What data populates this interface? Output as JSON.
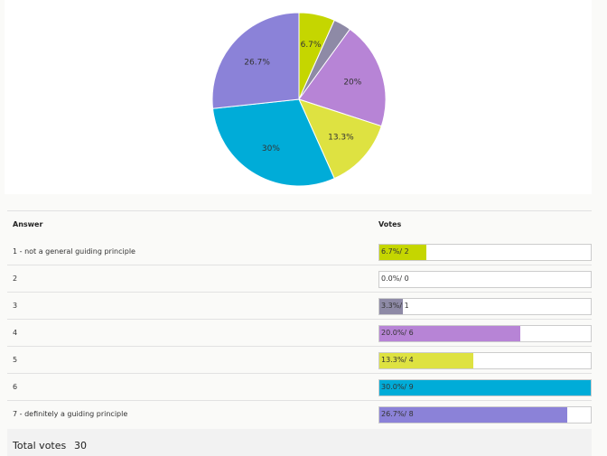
{
  "chart_data": {
    "type": "pie",
    "slices": [
      {
        "label": "1 - not a general guiding principle",
        "percent": 6.7,
        "votes": 2,
        "color": "#c5d600",
        "data_label": "6.7%"
      },
      {
        "label": "2",
        "percent": 0.0,
        "votes": 0,
        "color": "#cccccc",
        "data_label": ""
      },
      {
        "label": "3",
        "percent": 3.3,
        "votes": 1,
        "color": "#8e8aa6",
        "data_label": ""
      },
      {
        "label": "4",
        "percent": 20.0,
        "votes": 6,
        "color": "#b784d6",
        "data_label": "20%"
      },
      {
        "label": "5",
        "percent": 13.3,
        "votes": 4,
        "color": "#dee241",
        "data_label": "13.3%"
      },
      {
        "label": "6",
        "percent": 30.0,
        "votes": 9,
        "color": "#00acd8",
        "data_label": "30%"
      },
      {
        "label": "7 - definitely a guiding principle",
        "percent": 26.7,
        "votes": 8,
        "color": "#8b82d8",
        "data_label": "26.7%"
      }
    ]
  },
  "table": {
    "answer_header": "Answer",
    "votes_header": "Votes",
    "rows": [
      {
        "answer": "1 - not a general guiding principle",
        "votes_text": "6.7%/ 2"
      },
      {
        "answer": "2",
        "votes_text": "0.0%/ 0"
      },
      {
        "answer": "3",
        "votes_text": "3.3%/ 1"
      },
      {
        "answer": "4",
        "votes_text": "20.0%/ 6"
      },
      {
        "answer": "5",
        "votes_text": "13.3%/ 4"
      },
      {
        "answer": "6",
        "votes_text": "30.0%/ 9"
      },
      {
        "answer": "7 - definitely a guiding principle",
        "votes_text": "26.7%/ 8"
      }
    ]
  },
  "total": {
    "label": "Total votes",
    "value": "30"
  }
}
